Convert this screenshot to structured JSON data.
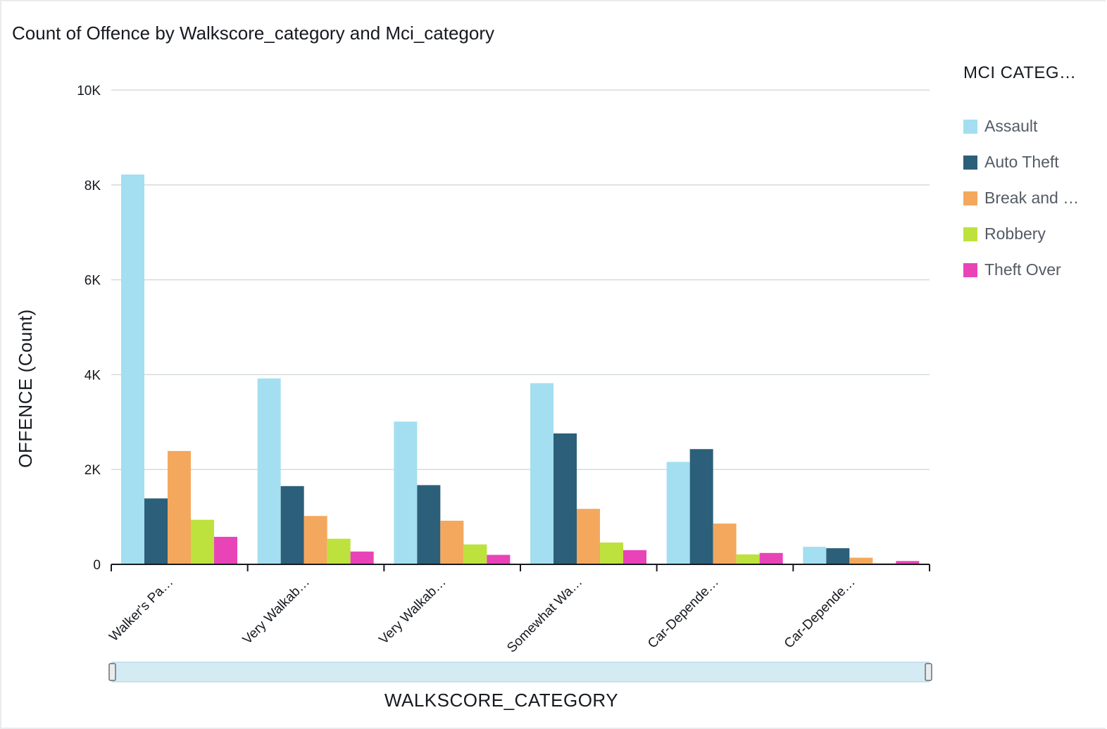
{
  "chart_data": {
    "type": "bar",
    "title": "Count of Offence by Walkscore_category and Mci_category",
    "xlabel": "WALKSCORE_CATEGORY",
    "ylabel": "OFFENCE (Count)",
    "ylim": [
      0,
      10000
    ],
    "yticks": [
      0,
      2000,
      4000,
      6000,
      8000,
      10000
    ],
    "ytick_labels": [
      "0",
      "2K",
      "4K",
      "6K",
      "8K",
      "10K"
    ],
    "grid": true,
    "legend_position": "right",
    "legend_title": "MCI CATEG…",
    "categories": [
      "Walker's Pa…",
      "Very Walkab…",
      "Very Walkab…",
      "Somewhat Wa…",
      "Car-Depende…",
      "Car-Depende…"
    ],
    "series": [
      {
        "name": "Assault",
        "color": "#a3dff0",
        "values": [
          8220,
          3920,
          3010,
          3820,
          2160,
          370
        ]
      },
      {
        "name": "Auto Theft",
        "color": "#2c5f7a",
        "values": [
          1390,
          1650,
          1670,
          2760,
          2430,
          340
        ]
      },
      {
        "name": "Break and …",
        "color": "#f4a85e",
        "values": [
          2390,
          1020,
          920,
          1170,
          860,
          140
        ]
      },
      {
        "name": "Robbery",
        "color": "#bde23d",
        "values": [
          940,
          540,
          420,
          460,
          210,
          25
        ]
      },
      {
        "name": "Theft Over",
        "color": "#e844b8",
        "values": [
          580,
          270,
          200,
          300,
          240,
          70
        ]
      }
    ]
  }
}
